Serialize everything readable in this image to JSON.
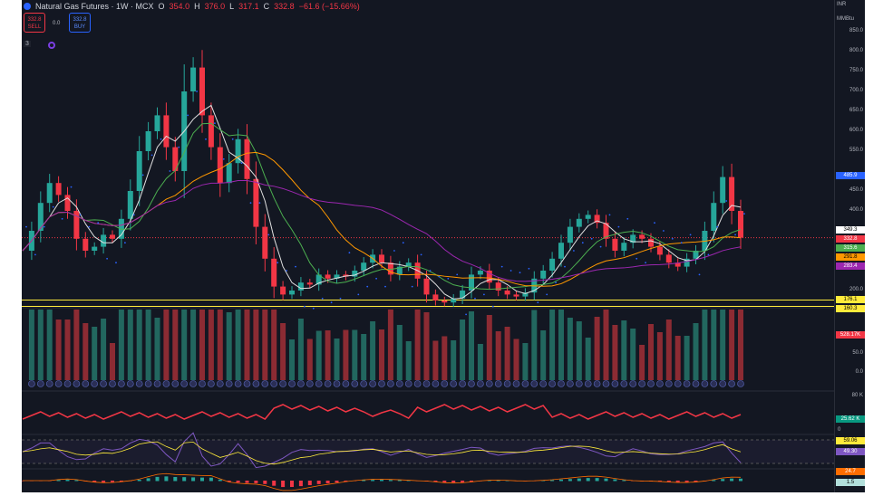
{
  "header": {
    "title": "Natural Gas Futures · 1W · MCX",
    "o_label": "O",
    "o": "354.0",
    "h_label": "H",
    "h": "376.0",
    "l_label": "L",
    "l": "317.1",
    "c_label": "C",
    "c": "332.8",
    "change": "−61.6 (−15.66%)"
  },
  "trade": {
    "sell_price": "332.8",
    "sell_label": "SELL",
    "spread": "0.0",
    "buy_price": "332.8",
    "buy_label": "BUY"
  },
  "indicators_toggle": "3",
  "axis_top": {
    "currency": "INR",
    "unit": "MMBtu"
  },
  "colors": {
    "up": "#26a69a",
    "down": "#f23645",
    "bg": "#131722",
    "accent": "#2962ff"
  },
  "price_axis": {
    "ticks": [
      "850.0",
      "800.0",
      "750.0",
      "700.0",
      "650.0",
      "600.0",
      "550.0",
      "450.0",
      "400.0",
      "200.0"
    ]
  },
  "price_tags": [
    {
      "value": "485.9",
      "color": "#2962ff",
      "text": "#fff"
    },
    {
      "value": "349.3",
      "color": "#ffffff",
      "text": "#000"
    },
    {
      "value": "332.8",
      "color": "#f23645",
      "text": "#fff"
    },
    {
      "value": "315.6",
      "color": "#4caf50",
      "text": "#fff"
    },
    {
      "value": "291.8",
      "color": "#ff9800",
      "text": "#000"
    },
    {
      "value": "283.4",
      "color": "#9c27b0",
      "text": "#fff"
    },
    {
      "value": "176.1",
      "color": "#ffeb3b",
      "text": "#000"
    },
    {
      "value": "160.3",
      "color": "#ffeb3b",
      "text": "#000"
    }
  ],
  "volume_pane": {
    "tag": "528.17K",
    "ticks": [
      "50.0",
      "0.0"
    ]
  },
  "pane2": {
    "tick": "80 K",
    "tag": "25.62 K",
    "zero": "0"
  },
  "rsi_pane": {
    "tag1": "59.06",
    "tag2": "49.30"
  },
  "macd_pane": {
    "tag1": "24.7",
    "tag2": "1.5"
  },
  "chart_data": {
    "type": "candlestick",
    "title": "Natural Gas Futures · 1W · MCX",
    "ylim": [
      160,
      850
    ],
    "horizontal_levels": [
      176.1,
      160.3
    ],
    "closes": [
      300,
      350,
      420,
      470,
      440,
      400,
      330,
      300,
      310,
      340,
      330,
      380,
      450,
      550,
      600,
      640,
      560,
      500,
      700,
      760,
      640,
      560,
      470,
      520,
      580,
      480,
      360,
      280,
      210,
      190,
      200,
      220,
      215,
      240,
      230,
      240,
      235,
      250,
      270,
      290,
      270,
      240,
      260,
      270,
      230,
      190,
      175,
      170,
      180,
      200,
      240,
      250,
      220,
      200,
      190,
      185,
      195,
      230,
      250,
      280,
      320,
      360,
      380,
      390,
      370,
      330,
      300,
      320,
      340,
      330,
      310,
      290,
      270,
      260,
      280,
      300,
      350,
      420,
      485,
      400,
      332.8
    ]
  }
}
